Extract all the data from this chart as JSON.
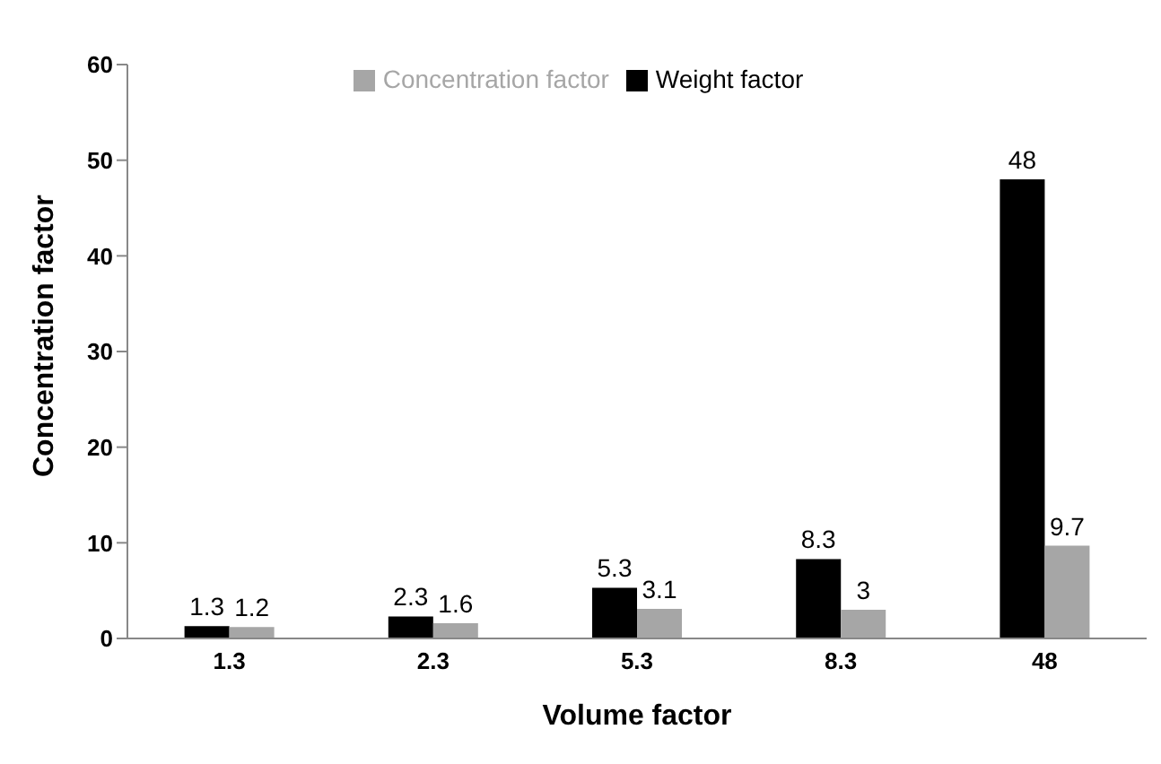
{
  "chart_data": {
    "type": "bar",
    "xlabel": "Volume factor",
    "ylabel": "Concentration factor",
    "categories": [
      "1.3",
      "2.3",
      "5.3",
      "8.3",
      "48"
    ],
    "series": [
      {
        "name": "Weight factor",
        "color": "#000000",
        "values": [
          1.3,
          2.3,
          5.3,
          8.3,
          48
        ]
      },
      {
        "name": "Concentration factor",
        "color": "#a6a6a6",
        "values": [
          1.2,
          1.6,
          3.1,
          3,
          9.7
        ]
      }
    ],
    "ylim": [
      0,
      60
    ],
    "yticks": [
      0,
      10,
      20,
      30,
      40,
      50,
      60
    ],
    "grid": false,
    "legend": "top",
    "data_labels": true
  }
}
